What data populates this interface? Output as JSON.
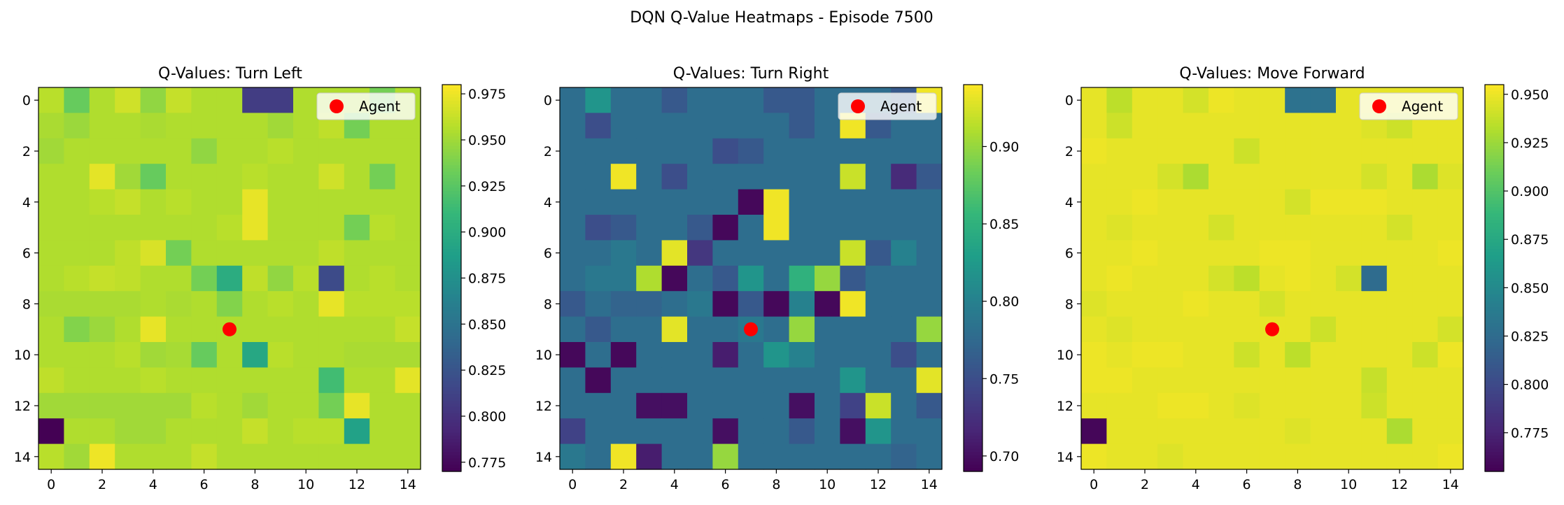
{
  "figure": {
    "suptitle": "DQN Q-Value Heatmaps - Episode 7500",
    "palette": {
      "agent_marker": "#ff0000",
      "colormap": "viridis",
      "colormap_stops": [
        "#440154",
        "#482878",
        "#3e4989",
        "#31688e",
        "#26828e",
        "#1f9e89",
        "#35b779",
        "#6ece58",
        "#b5de2b",
        "#fde725"
      ]
    }
  },
  "chart_data": [
    {
      "type": "heatmap",
      "title": "Q-Values: Turn Left",
      "xlabel": "",
      "ylabel": "",
      "x_ticks": [
        "0",
        "2",
        "4",
        "6",
        "8",
        "10",
        "12",
        "14"
      ],
      "y_ticks": [
        "0",
        "2",
        "4",
        "6",
        "8",
        "10",
        "12",
        "14"
      ],
      "color_range": [
        0.77,
        0.98
      ],
      "colorbar_ticks": [
        "0.775",
        "0.800",
        "0.825",
        "0.850",
        "0.875",
        "0.900",
        "0.925",
        "0.950",
        "0.975"
      ],
      "legend": {
        "label": "Agent",
        "position": "upper right"
      },
      "agent": {
        "x": 7,
        "y": 9
      },
      "values": [
        [
          0.958,
          0.93,
          0.955,
          0.965,
          0.945,
          0.962,
          0.955,
          0.955,
          0.808,
          0.808,
          0.955,
          0.955,
          0.955,
          0.935,
          0.955
        ],
        [
          0.953,
          0.948,
          0.955,
          0.955,
          0.953,
          0.955,
          0.955,
          0.955,
          0.955,
          0.95,
          0.955,
          0.96,
          0.935,
          0.955,
          0.955
        ],
        [
          0.95,
          0.955,
          0.955,
          0.955,
          0.955,
          0.955,
          0.945,
          0.955,
          0.955,
          0.958,
          0.955,
          0.955,
          0.955,
          0.955,
          0.955
        ],
        [
          0.955,
          0.955,
          0.972,
          0.95,
          0.93,
          0.955,
          0.955,
          0.955,
          0.958,
          0.955,
          0.955,
          0.965,
          0.955,
          0.935,
          0.955
        ],
        [
          0.955,
          0.955,
          0.958,
          0.962,
          0.955,
          0.958,
          0.955,
          0.955,
          0.973,
          0.955,
          0.955,
          0.955,
          0.955,
          0.955,
          0.955
        ],
        [
          0.955,
          0.955,
          0.955,
          0.955,
          0.955,
          0.955,
          0.955,
          0.958,
          0.973,
          0.955,
          0.955,
          0.955,
          0.935,
          0.958,
          0.955
        ],
        [
          0.955,
          0.955,
          0.955,
          0.96,
          0.968,
          0.935,
          0.955,
          0.955,
          0.955,
          0.955,
          0.955,
          0.96,
          0.955,
          0.955,
          0.955
        ],
        [
          0.955,
          0.958,
          0.962,
          0.96,
          0.955,
          0.955,
          0.935,
          0.9,
          0.96,
          0.945,
          0.958,
          0.818,
          0.955,
          0.958,
          0.955
        ],
        [
          0.953,
          0.953,
          0.953,
          0.953,
          0.955,
          0.953,
          0.955,
          0.94,
          0.955,
          0.958,
          0.955,
          0.973,
          0.958,
          0.958,
          0.958
        ],
        [
          0.955,
          0.94,
          0.948,
          0.955,
          0.973,
          0.955,
          0.955,
          0.955,
          0.955,
          0.955,
          0.955,
          0.955,
          0.955,
          0.955,
          0.962
        ],
        [
          0.955,
          0.955,
          0.955,
          0.958,
          0.95,
          0.952,
          0.93,
          0.955,
          0.895,
          0.958,
          0.955,
          0.955,
          0.953,
          0.953,
          0.953
        ],
        [
          0.96,
          0.955,
          0.955,
          0.955,
          0.958,
          0.955,
          0.955,
          0.955,
          0.955,
          0.955,
          0.955,
          0.915,
          0.955,
          0.955,
          0.972
        ],
        [
          0.95,
          0.95,
          0.95,
          0.95,
          0.95,
          0.95,
          0.958,
          0.955,
          0.95,
          0.955,
          0.955,
          0.935,
          0.973,
          0.955,
          0.955
        ],
        [
          0.77,
          0.955,
          0.955,
          0.95,
          0.95,
          0.955,
          0.955,
          0.955,
          0.962,
          0.955,
          0.958,
          0.958,
          0.89,
          0.955,
          0.955
        ],
        [
          0.958,
          0.95,
          0.975,
          0.955,
          0.955,
          0.955,
          0.962,
          0.955,
          0.955,
          0.955,
          0.955,
          0.955,
          0.955,
          0.955,
          0.955
        ]
      ]
    },
    {
      "type": "heatmap",
      "title": "Q-Values: Turn Right",
      "xlabel": "",
      "ylabel": "",
      "x_ticks": [
        "0",
        "2",
        "4",
        "6",
        "8",
        "10",
        "12",
        "14"
      ],
      "y_ticks": [
        "0",
        "2",
        "4",
        "6",
        "8",
        "10",
        "12",
        "14"
      ],
      "color_range": [
        0.69,
        0.94
      ],
      "colorbar_ticks": [
        "0.70",
        "0.75",
        "0.80",
        "0.85",
        "0.90"
      ],
      "legend": {
        "label": "Agent",
        "position": "upper right"
      },
      "agent": {
        "x": 7,
        "y": 9
      },
      "values": [
        [
          0.78,
          0.82,
          0.78,
          0.78,
          0.76,
          0.78,
          0.78,
          0.78,
          0.76,
          0.76,
          0.78,
          0.78,
          0.78,
          0.76,
          0.935
        ],
        [
          0.78,
          0.75,
          0.78,
          0.78,
          0.78,
          0.78,
          0.78,
          0.78,
          0.78,
          0.76,
          0.78,
          0.935,
          0.76,
          0.78,
          0.78
        ],
        [
          0.78,
          0.78,
          0.78,
          0.78,
          0.78,
          0.78,
          0.75,
          0.76,
          0.78,
          0.78,
          0.78,
          0.78,
          0.78,
          0.78,
          0.78
        ],
        [
          0.78,
          0.78,
          0.935,
          0.78,
          0.75,
          0.78,
          0.78,
          0.78,
          0.78,
          0.78,
          0.78,
          0.92,
          0.78,
          0.72,
          0.76
        ],
        [
          0.78,
          0.78,
          0.78,
          0.78,
          0.78,
          0.78,
          0.78,
          0.695,
          0.935,
          0.78,
          0.78,
          0.78,
          0.78,
          0.78,
          0.78
        ],
        [
          0.78,
          0.75,
          0.76,
          0.78,
          0.78,
          0.76,
          0.695,
          0.78,
          0.935,
          0.78,
          0.78,
          0.78,
          0.78,
          0.78,
          0.78
        ],
        [
          0.78,
          0.78,
          0.79,
          0.78,
          0.93,
          0.73,
          0.78,
          0.78,
          0.78,
          0.78,
          0.78,
          0.92,
          0.76,
          0.8,
          0.78
        ],
        [
          0.78,
          0.79,
          0.79,
          0.91,
          0.695,
          0.78,
          0.76,
          0.82,
          0.78,
          0.85,
          0.9,
          0.76,
          0.78,
          0.78,
          0.78
        ],
        [
          0.76,
          0.78,
          0.77,
          0.77,
          0.78,
          0.79,
          0.695,
          0.76,
          0.695,
          0.8,
          0.695,
          0.935,
          0.78,
          0.78,
          0.78
        ],
        [
          0.78,
          0.76,
          0.78,
          0.78,
          0.93,
          0.78,
          0.78,
          0.79,
          0.78,
          0.9,
          0.78,
          0.78,
          0.78,
          0.78,
          0.9
        ],
        [
          0.695,
          0.78,
          0.695,
          0.78,
          0.78,
          0.78,
          0.71,
          0.78,
          0.82,
          0.8,
          0.78,
          0.78,
          0.78,
          0.75,
          0.78
        ],
        [
          0.78,
          0.695,
          0.78,
          0.78,
          0.78,
          0.78,
          0.78,
          0.78,
          0.78,
          0.78,
          0.78,
          0.82,
          0.78,
          0.78,
          0.93
        ],
        [
          0.78,
          0.78,
          0.78,
          0.7,
          0.7,
          0.78,
          0.78,
          0.78,
          0.78,
          0.7,
          0.78,
          0.74,
          0.92,
          0.78,
          0.76
        ],
        [
          0.74,
          0.78,
          0.78,
          0.78,
          0.78,
          0.78,
          0.7,
          0.78,
          0.78,
          0.76,
          0.78,
          0.7,
          0.82,
          0.78,
          0.78
        ],
        [
          0.79,
          0.78,
          0.935,
          0.71,
          0.78,
          0.78,
          0.9,
          0.78,
          0.78,
          0.78,
          0.78,
          0.78,
          0.78,
          0.77,
          0.78
        ]
      ]
    },
    {
      "type": "heatmap",
      "title": "Q-Values: Move Forward",
      "xlabel": "",
      "ylabel": "",
      "x_ticks": [
        "0",
        "2",
        "4",
        "6",
        "8",
        "10",
        "12",
        "14"
      ],
      "y_ticks": [
        "0",
        "2",
        "4",
        "6",
        "8",
        "10",
        "12",
        "14"
      ],
      "color_range": [
        0.755,
        0.955
      ],
      "colorbar_ticks": [
        "0.775",
        "0.800",
        "0.825",
        "0.850",
        "0.875",
        "0.900",
        "0.925",
        "0.950"
      ],
      "legend": {
        "label": "Agent",
        "position": "upper right"
      },
      "agent": {
        "x": 7,
        "y": 9
      },
      "values": [
        [
          0.948,
          0.935,
          0.948,
          0.948,
          0.942,
          0.95,
          0.948,
          0.948,
          0.83,
          0.83,
          0.948,
          0.948,
          0.948,
          0.948,
          0.948
        ],
        [
          0.948,
          0.94,
          0.948,
          0.948,
          0.948,
          0.948,
          0.948,
          0.948,
          0.948,
          0.948,
          0.948,
          0.945,
          0.94,
          0.948,
          0.948
        ],
        [
          0.95,
          0.948,
          0.948,
          0.948,
          0.948,
          0.948,
          0.94,
          0.948,
          0.948,
          0.948,
          0.948,
          0.948,
          0.948,
          0.948,
          0.948
        ],
        [
          0.948,
          0.948,
          0.948,
          0.942,
          0.93,
          0.948,
          0.948,
          0.948,
          0.948,
          0.948,
          0.948,
          0.942,
          0.948,
          0.93,
          0.945
        ],
        [
          0.948,
          0.948,
          0.95,
          0.948,
          0.948,
          0.948,
          0.948,
          0.948,
          0.942,
          0.95,
          0.95,
          0.95,
          0.948,
          0.948,
          0.948
        ],
        [
          0.948,
          0.945,
          0.948,
          0.948,
          0.948,
          0.942,
          0.948,
          0.948,
          0.948,
          0.948,
          0.948,
          0.948,
          0.942,
          0.948,
          0.948
        ],
        [
          0.948,
          0.948,
          0.95,
          0.948,
          0.948,
          0.948,
          0.948,
          0.95,
          0.95,
          0.948,
          0.948,
          0.948,
          0.948,
          0.948,
          0.95
        ],
        [
          0.948,
          0.95,
          0.948,
          0.948,
          0.948,
          0.942,
          0.935,
          0.948,
          0.95,
          0.948,
          0.942,
          0.825,
          0.948,
          0.948,
          0.948
        ],
        [
          0.945,
          0.948,
          0.948,
          0.948,
          0.95,
          0.948,
          0.948,
          0.942,
          0.948,
          0.948,
          0.948,
          0.948,
          0.948,
          0.948,
          0.948
        ],
        [
          0.948,
          0.945,
          0.948,
          0.948,
          0.948,
          0.948,
          0.948,
          0.948,
          0.948,
          0.94,
          0.948,
          0.948,
          0.948,
          0.948,
          0.942
        ],
        [
          0.95,
          0.948,
          0.95,
          0.95,
          0.948,
          0.948,
          0.94,
          0.948,
          0.935,
          0.948,
          0.948,
          0.948,
          0.948,
          0.94,
          0.95
        ],
        [
          0.95,
          0.95,
          0.948,
          0.948,
          0.948,
          0.948,
          0.948,
          0.948,
          0.948,
          0.948,
          0.948,
          0.938,
          0.948,
          0.948,
          0.948
        ],
        [
          0.948,
          0.948,
          0.948,
          0.95,
          0.95,
          0.948,
          0.945,
          0.948,
          0.948,
          0.948,
          0.948,
          0.94,
          0.948,
          0.948,
          0.948
        ],
        [
          0.758,
          0.948,
          0.948,
          0.948,
          0.948,
          0.948,
          0.948,
          0.948,
          0.945,
          0.948,
          0.948,
          0.948,
          0.93,
          0.948,
          0.948
        ],
        [
          0.95,
          0.948,
          0.948,
          0.945,
          0.948,
          0.948,
          0.948,
          0.948,
          0.948,
          0.948,
          0.948,
          0.948,
          0.948,
          0.948,
          0.95
        ]
      ]
    }
  ]
}
